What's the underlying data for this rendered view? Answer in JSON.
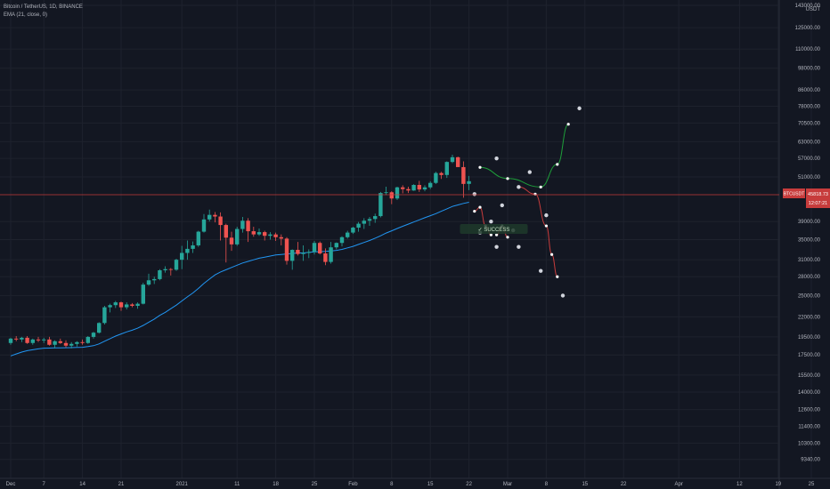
{
  "legend": {
    "symbol": "Bitcoin / TetherUS, 1D, BINANCE",
    "indicator": "EMA (21, close, 0)"
  },
  "currency": "USDT",
  "price_badge": {
    "symbol": "BTCUSDT",
    "price": "45818.73",
    "countdown": "12:07:21"
  },
  "success_label": "✓ SUCCESS",
  "colors": {
    "background": "#131722",
    "up": "#26a69a",
    "down": "#ef5350",
    "ema": "#2196f3",
    "price_line": "#c43a3a",
    "projection_up": "#1e9e3a",
    "projection_down": "#c73c3c"
  },
  "chart_data": {
    "type": "candlestick",
    "scale": "log",
    "ylim": [
      8700,
      143000
    ],
    "y_ticks": [
      {
        "label": "143000.00",
        "value": 143000
      },
      {
        "label": "125000.00",
        "value": 125000
      },
      {
        "label": "110000.00",
        "value": 110000
      },
      {
        "label": "98000.00",
        "value": 98000
      },
      {
        "label": "86000.00",
        "value": 86000
      },
      {
        "label": "78000.00",
        "value": 78000
      },
      {
        "label": "70500.00",
        "value": 70500
      },
      {
        "label": "63000.00",
        "value": 63000
      },
      {
        "label": "57000.00",
        "value": 57000
      },
      {
        "label": "51000.00",
        "value": 51000
      },
      {
        "label": "39000.00",
        "value": 39000
      },
      {
        "label": "35000.00",
        "value": 35000
      },
      {
        "label": "31000.00",
        "value": 31000
      },
      {
        "label": "28000.00",
        "value": 28000
      },
      {
        "label": "25000.00",
        "value": 25000
      },
      {
        "label": "22000.00",
        "value": 22000
      },
      {
        "label": "19500.00",
        "value": 19500
      },
      {
        "label": "17500.00",
        "value": 17500
      },
      {
        "label": "15500.00",
        "value": 15500
      },
      {
        "label": "14000.00",
        "value": 14000
      },
      {
        "label": "12600.00",
        "value": 12600
      },
      {
        "label": "11400.00",
        "value": 11400
      },
      {
        "label": "10300.00",
        "value": 10300
      },
      {
        "label": "9340.00",
        "value": 9340
      }
    ],
    "x_ticks": [
      {
        "label": "Dec",
        "day": 0
      },
      {
        "label": "7",
        "day": 6
      },
      {
        "label": "14",
        "day": 13
      },
      {
        "label": "21",
        "day": 20
      },
      {
        "label": "2021",
        "day": 31
      },
      {
        "label": "11",
        "day": 41
      },
      {
        "label": "18",
        "day": 48
      },
      {
        "label": "25",
        "day": 55
      },
      {
        "label": "Feb",
        "day": 62
      },
      {
        "label": "8",
        "day": 69
      },
      {
        "label": "15",
        "day": 76
      },
      {
        "label": "22",
        "day": 83
      },
      {
        "label": "Mar",
        "day": 90
      },
      {
        "label": "8",
        "day": 97
      },
      {
        "label": "15",
        "day": 104
      },
      {
        "label": "22",
        "day": 111
      },
      {
        "label": "Apr",
        "day": 121
      },
      {
        "label": "12",
        "day": 132
      },
      {
        "label": "19",
        "day": 139
      },
      {
        "label": "25",
        "day": 145
      }
    ],
    "candles": [
      [
        18800,
        19400,
        18600,
        19300
      ],
      [
        19300,
        19600,
        19000,
        19200
      ],
      [
        19200,
        19500,
        18900,
        19400
      ],
      [
        19400,
        19600,
        18700,
        18800
      ],
      [
        18800,
        19300,
        18600,
        19200
      ],
      [
        19200,
        19500,
        18900,
        19100
      ],
      [
        19100,
        19400,
        18800,
        19200
      ],
      [
        19200,
        19500,
        18500,
        18600
      ],
      [
        18600,
        19100,
        18200,
        19000
      ],
      [
        19000,
        19300,
        18700,
        18800
      ],
      [
        18800,
        19100,
        18300,
        18500
      ],
      [
        18500,
        18900,
        18200,
        18700
      ],
      [
        18700,
        19000,
        18400,
        18900
      ],
      [
        18900,
        19200,
        18600,
        18800
      ],
      [
        18800,
        19600,
        18700,
        19500
      ],
      [
        19500,
        20100,
        19300,
        20000
      ],
      [
        20000,
        21300,
        19900,
        21200
      ],
      [
        21200,
        23500,
        21000,
        23300
      ],
      [
        23300,
        23800,
        22600,
        23600
      ],
      [
        23600,
        24200,
        23200,
        24000
      ],
      [
        24000,
        24100,
        22800,
        23300
      ],
      [
        23300,
        24000,
        23000,
        23700
      ],
      [
        23700,
        23900,
        23300,
        23500
      ],
      [
        23500,
        24000,
        23100,
        23800
      ],
      [
        23800,
        27000,
        23700,
        26700
      ],
      [
        26700,
        28500,
        26500,
        27400
      ],
      [
        27400,
        28000,
        26800,
        27600
      ],
      [
        27600,
        29300,
        27400,
        29100
      ],
      [
        29100,
        29800,
        28700,
        29300
      ],
      [
        29300,
        29500,
        28200,
        29200
      ],
      [
        29200,
        31200,
        29000,
        31000
      ],
      [
        31000,
        33700,
        29300,
        32300
      ],
      [
        32300,
        34800,
        31000,
        33100
      ],
      [
        33100,
        34600,
        32300,
        33800
      ],
      [
        33800,
        36900,
        33500,
        36700
      ],
      [
        36700,
        40800,
        36500,
        39500
      ],
      [
        39500,
        41900,
        39000,
        40600
      ],
      [
        40600,
        41300,
        38800,
        40200
      ],
      [
        40200,
        41200,
        34800,
        38200
      ],
      [
        38200,
        38500,
        30500,
        35400
      ],
      [
        35400,
        36700,
        32700,
        34000
      ],
      [
        34000,
        37800,
        33700,
        37300
      ],
      [
        37300,
        40100,
        36500,
        39200
      ],
      [
        39200,
        39800,
        34500,
        36800
      ],
      [
        36800,
        37800,
        35600,
        36100
      ],
      [
        36100,
        37400,
        35800,
        36600
      ],
      [
        36600,
        36900,
        34800,
        35800
      ],
      [
        35800,
        36600,
        35000,
        36100
      ],
      [
        36100,
        36500,
        34700,
        35500
      ],
      [
        35500,
        36100,
        33800,
        35200
      ],
      [
        35200,
        35500,
        30100,
        30800
      ],
      [
        30800,
        33000,
        29200,
        32900
      ],
      [
        32900,
        34500,
        31800,
        32100
      ],
      [
        32100,
        33800,
        30800,
        32300
      ],
      [
        32300,
        33000,
        31300,
        32500
      ],
      [
        32500,
        34700,
        32000,
        34300
      ],
      [
        34300,
        34600,
        32000,
        32200
      ],
      [
        32200,
        33200,
        30000,
        30600
      ],
      [
        30600,
        34500,
        30300,
        33400
      ],
      [
        33400,
        34400,
        33000,
        34300
      ],
      [
        34300,
        35700,
        33600,
        35500
      ],
      [
        35500,
        36900,
        35200,
        36500
      ],
      [
        36500,
        37800,
        36200,
        37600
      ],
      [
        37600,
        38900,
        36700,
        38500
      ],
      [
        38500,
        39800,
        37300,
        39200
      ],
      [
        39200,
        40100,
        38000,
        39600
      ],
      [
        39600,
        40900,
        38700,
        40300
      ],
      [
        40300,
        46600,
        40000,
        46300
      ],
      [
        46300,
        48100,
        45700,
        46500
      ],
      [
        46500,
        46800,
        43300,
        44800
      ],
      [
        44800,
        48100,
        44400,
        47900
      ],
      [
        47900,
        48500,
        46200,
        47400
      ],
      [
        47400,
        48100,
        46300,
        47000
      ],
      [
        47000,
        48800,
        46900,
        48600
      ],
      [
        48600,
        49800,
        46600,
        47300
      ],
      [
        47300,
        48500,
        46800,
        47900
      ],
      [
        47900,
        49700,
        47400,
        49200
      ],
      [
        49200,
        52600,
        48900,
        52200
      ],
      [
        52200,
        52600,
        50400,
        51600
      ],
      [
        51600,
        56000,
        50700,
        55800
      ],
      [
        55800,
        58300,
        55400,
        57400
      ],
      [
        57400,
        57600,
        54200,
        54100
      ],
      [
        54100,
        56000,
        45000,
        48900
      ],
      [
        48900,
        51300,
        47100,
        49700
      ]
    ],
    "ema": [
      17400,
      17600,
      17800,
      17950,
      18050,
      18150,
      18220,
      18230,
      18250,
      18260,
      18270,
      18280,
      18300,
      18320,
      18400,
      18500,
      18700,
      19000,
      19300,
      19600,
      19850,
      20100,
      20300,
      20550,
      20900,
      21300,
      21700,
      22200,
      22600,
      23100,
      23600,
      24200,
      24800,
      25400,
      26100,
      26900,
      27600,
      28300,
      28800,
      29200,
      29600,
      30000,
      30400,
      30700,
      31000,
      31300,
      31500,
      31700,
      31900,
      32000,
      32100,
      32200,
      32300,
      32300,
      32400,
      32500,
      32550,
      32600,
      32700,
      32800,
      33000,
      33300,
      33600,
      34000,
      34400,
      34800,
      35300,
      35800,
      36400,
      36900,
      37400,
      37900,
      38400,
      38900,
      39400,
      39900,
      40400,
      40900,
      41500,
      42100,
      42700,
      43100,
      43500,
      43800
    ],
    "projections": [
      {
        "direction": "up",
        "points": [
          [
            85,
            54000
          ],
          [
            90,
            50500
          ],
          [
            96,
            48000
          ],
          [
            99,
            55000
          ],
          [
            101,
            70000
          ]
        ]
      },
      {
        "direction": "down",
        "points": [
          [
            92,
            48000
          ],
          [
            95,
            46000
          ],
          [
            97,
            38000
          ],
          [
            98,
            32000
          ],
          [
            99,
            28000
          ]
        ]
      },
      {
        "direction": "down",
        "points": [
          [
            84,
            41500
          ],
          [
            85,
            42500
          ],
          [
            86,
            38000
          ],
          [
            87,
            36000
          ]
        ]
      },
      {
        "direction": "down",
        "points": [
          [
            88,
            36000
          ],
          [
            89,
            38000
          ],
          [
            90,
            35500
          ]
        ]
      }
    ],
    "markers": [
      [
        88,
        57000
      ],
      [
        94,
        52500
      ],
      [
        103,
        77000
      ],
      [
        84,
        46000
      ],
      [
        89,
        43000
      ],
      [
        92,
        48000
      ],
      [
        97,
        40500
      ],
      [
        87,
        39000
      ],
      [
        85,
        36500
      ],
      [
        91,
        37000
      ],
      [
        88,
        33500
      ],
      [
        92,
        33500
      ],
      [
        100,
        25000
      ],
      [
        96,
        29000
      ]
    ]
  }
}
